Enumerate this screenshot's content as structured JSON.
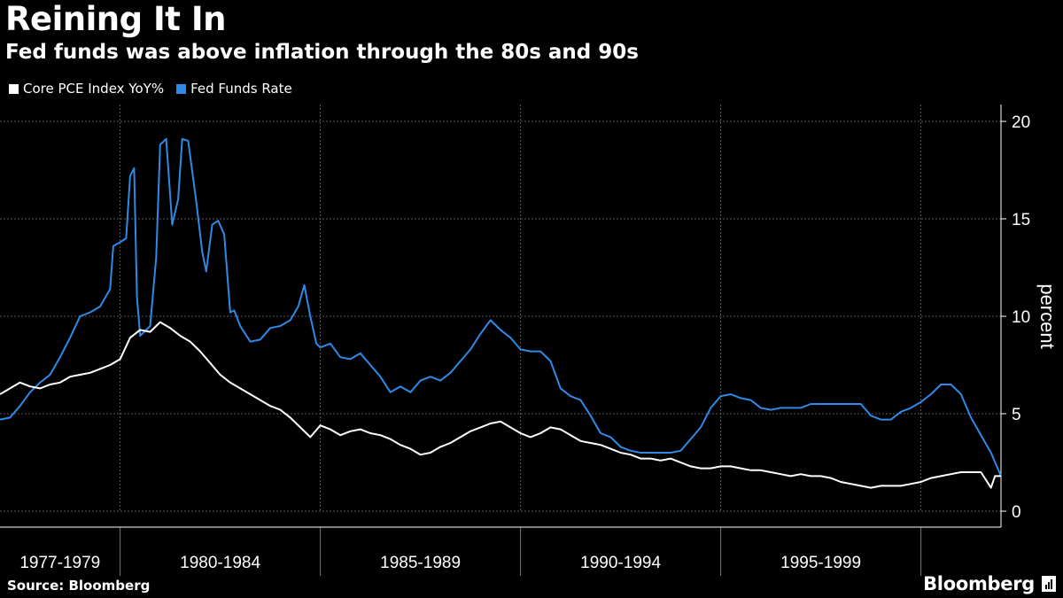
{
  "header": {
    "title": "Reining It In",
    "subtitle": "Fed funds was above inflation through the 80s and 90s"
  },
  "legend": [
    {
      "label": "Core PCE Index YoY%",
      "color": "#ffffff"
    },
    {
      "label": "Fed Funds Rate",
      "color": "#2e8ae6"
    }
  ],
  "footer": {
    "source": "Source: Bloomberg",
    "brand": "Bloomberg"
  },
  "chart_data": {
    "type": "line",
    "title": "Reining It In",
    "subtitle": "Fed funds was above inflation through the 80s and 90s",
    "xlabel": "",
    "ylabel": "percent",
    "xlim": [
      1977.0,
      2002.0
    ],
    "ylim": [
      0,
      20
    ],
    "y_ticks": [
      0,
      5,
      10,
      15,
      20
    ],
    "x_tick_labels": [
      {
        "label": "1977-1979",
        "center": 1978.5
      },
      {
        "label": "1980-1984",
        "center": 1982.5
      },
      {
        "label": "1985-1989",
        "center": 1987.5
      },
      {
        "label": "1990-1994",
        "center": 1992.5
      },
      {
        "label": "1995-1999",
        "center": 1997.5
      }
    ],
    "x_separators": [
      1980,
      1985,
      1990,
      1995,
      2000
    ],
    "legend_position": "top-left",
    "grid": true,
    "series": [
      {
        "name": "Core PCE Index YoY%",
        "color": "#ffffff",
        "points": [
          [
            1977.0,
            6.0
          ],
          [
            1977.25,
            6.3
          ],
          [
            1977.5,
            6.6
          ],
          [
            1977.75,
            6.4
          ],
          [
            1978.0,
            6.3
          ],
          [
            1978.25,
            6.5
          ],
          [
            1978.5,
            6.6
          ],
          [
            1978.75,
            6.9
          ],
          [
            1979.0,
            7.0
          ],
          [
            1979.25,
            7.1
          ],
          [
            1979.5,
            7.3
          ],
          [
            1979.75,
            7.5
          ],
          [
            1980.0,
            7.8
          ],
          [
            1980.25,
            8.9
          ],
          [
            1980.5,
            9.3
          ],
          [
            1980.75,
            9.2
          ],
          [
            1981.0,
            9.7
          ],
          [
            1981.25,
            9.4
          ],
          [
            1981.5,
            9.0
          ],
          [
            1981.75,
            8.7
          ],
          [
            1982.0,
            8.2
          ],
          [
            1982.25,
            7.6
          ],
          [
            1982.5,
            7.0
          ],
          [
            1982.75,
            6.6
          ],
          [
            1983.0,
            6.3
          ],
          [
            1983.25,
            6.0
          ],
          [
            1983.5,
            5.7
          ],
          [
            1983.75,
            5.4
          ],
          [
            1984.0,
            5.2
          ],
          [
            1984.25,
            4.8
          ],
          [
            1984.5,
            4.3
          ],
          [
            1984.75,
            3.8
          ],
          [
            1985.0,
            4.4
          ],
          [
            1985.25,
            4.2
          ],
          [
            1985.5,
            3.9
          ],
          [
            1985.75,
            4.1
          ],
          [
            1986.0,
            4.2
          ],
          [
            1986.25,
            4.0
          ],
          [
            1986.5,
            3.9
          ],
          [
            1986.75,
            3.7
          ],
          [
            1987.0,
            3.4
          ],
          [
            1987.25,
            3.2
          ],
          [
            1987.5,
            2.9
          ],
          [
            1987.75,
            3.0
          ],
          [
            1988.0,
            3.3
          ],
          [
            1988.25,
            3.5
          ],
          [
            1988.5,
            3.8
          ],
          [
            1988.75,
            4.1
          ],
          [
            1989.0,
            4.3
          ],
          [
            1989.25,
            4.5
          ],
          [
            1989.5,
            4.6
          ],
          [
            1989.75,
            4.3
          ],
          [
            1990.0,
            4.0
          ],
          [
            1990.25,
            3.8
          ],
          [
            1990.5,
            4.0
          ],
          [
            1990.75,
            4.3
          ],
          [
            1991.0,
            4.2
          ],
          [
            1991.25,
            3.9
          ],
          [
            1991.5,
            3.6
          ],
          [
            1991.75,
            3.5
          ],
          [
            1992.0,
            3.4
          ],
          [
            1992.25,
            3.2
          ],
          [
            1992.5,
            3.0
          ],
          [
            1992.75,
            2.9
          ],
          [
            1993.0,
            2.7
          ],
          [
            1993.25,
            2.7
          ],
          [
            1993.5,
            2.6
          ],
          [
            1993.75,
            2.7
          ],
          [
            1994.0,
            2.5
          ],
          [
            1994.25,
            2.3
          ],
          [
            1994.5,
            2.2
          ],
          [
            1994.75,
            2.2
          ],
          [
            1995.0,
            2.3
          ],
          [
            1995.25,
            2.3
          ],
          [
            1995.5,
            2.2
          ],
          [
            1995.75,
            2.1
          ],
          [
            1996.0,
            2.1
          ],
          [
            1996.25,
            2.0
          ],
          [
            1996.5,
            1.9
          ],
          [
            1996.75,
            1.8
          ],
          [
            1997.0,
            1.9
          ],
          [
            1997.25,
            1.8
          ],
          [
            1997.5,
            1.8
          ],
          [
            1997.75,
            1.7
          ],
          [
            1998.0,
            1.5
          ],
          [
            1998.25,
            1.4
          ],
          [
            1998.5,
            1.3
          ],
          [
            1998.75,
            1.2
          ],
          [
            1999.0,
            1.3
          ],
          [
            1999.25,
            1.3
          ],
          [
            1999.5,
            1.3
          ],
          [
            1999.75,
            1.4
          ],
          [
            2000.0,
            1.5
          ],
          [
            2000.25,
            1.7
          ],
          [
            2000.5,
            1.8
          ],
          [
            2000.75,
            1.9
          ],
          [
            2001.0,
            2.0
          ],
          [
            2001.25,
            2.0
          ],
          [
            2001.5,
            2.0
          ],
          [
            2001.75,
            1.2
          ],
          [
            2001.85,
            1.8
          ],
          [
            2002.0,
            1.8
          ]
        ]
      },
      {
        "name": "Fed Funds Rate",
        "color": "#2e8ae6",
        "points": [
          [
            1977.0,
            4.7
          ],
          [
            1977.25,
            4.8
          ],
          [
            1977.5,
            5.4
          ],
          [
            1977.75,
            6.1
          ],
          [
            1978.0,
            6.6
          ],
          [
            1978.25,
            7.0
          ],
          [
            1978.5,
            7.9
          ],
          [
            1978.75,
            8.9
          ],
          [
            1979.0,
            10.0
          ],
          [
            1979.25,
            10.2
          ],
          [
            1979.5,
            10.5
          ],
          [
            1979.75,
            11.4
          ],
          [
            1979.83,
            13.6
          ],
          [
            1980.0,
            13.8
          ],
          [
            1980.15,
            14.0
          ],
          [
            1980.25,
            17.2
          ],
          [
            1980.35,
            17.6
          ],
          [
            1980.42,
            11.0
          ],
          [
            1980.5,
            9.0
          ],
          [
            1980.75,
            9.5
          ],
          [
            1980.9,
            13.0
          ],
          [
            1981.0,
            18.8
          ],
          [
            1981.15,
            19.1
          ],
          [
            1981.3,
            14.7
          ],
          [
            1981.45,
            16.0
          ],
          [
            1981.55,
            19.1
          ],
          [
            1981.7,
            19.0
          ],
          [
            1981.9,
            15.9
          ],
          [
            1982.05,
            13.3
          ],
          [
            1982.15,
            12.3
          ],
          [
            1982.3,
            14.7
          ],
          [
            1982.45,
            14.9
          ],
          [
            1982.6,
            14.2
          ],
          [
            1982.75,
            10.2
          ],
          [
            1982.85,
            10.3
          ],
          [
            1983.0,
            9.5
          ],
          [
            1983.25,
            8.7
          ],
          [
            1983.5,
            8.8
          ],
          [
            1983.75,
            9.4
          ],
          [
            1984.0,
            9.5
          ],
          [
            1984.25,
            9.8
          ],
          [
            1984.45,
            10.5
          ],
          [
            1984.6,
            11.6
          ],
          [
            1984.75,
            10.0
          ],
          [
            1984.9,
            8.6
          ],
          [
            1985.0,
            8.4
          ],
          [
            1985.25,
            8.6
          ],
          [
            1985.5,
            7.9
          ],
          [
            1985.75,
            7.8
          ],
          [
            1986.0,
            8.1
          ],
          [
            1986.25,
            7.5
          ],
          [
            1986.5,
            6.9
          ],
          [
            1986.75,
            6.1
          ],
          [
            1987.0,
            6.4
          ],
          [
            1987.25,
            6.1
          ],
          [
            1987.5,
            6.7
          ],
          [
            1987.75,
            6.9
          ],
          [
            1988.0,
            6.7
          ],
          [
            1988.25,
            7.1
          ],
          [
            1988.5,
            7.7
          ],
          [
            1988.75,
            8.3
          ],
          [
            1989.0,
            9.1
          ],
          [
            1989.25,
            9.8
          ],
          [
            1989.5,
            9.3
          ],
          [
            1989.75,
            8.9
          ],
          [
            1990.0,
            8.3
          ],
          [
            1990.25,
            8.2
          ],
          [
            1990.5,
            8.2
          ],
          [
            1990.75,
            7.7
          ],
          [
            1991.0,
            6.3
          ],
          [
            1991.25,
            5.9
          ],
          [
            1991.5,
            5.7
          ],
          [
            1991.75,
            4.9
          ],
          [
            1992.0,
            4.0
          ],
          [
            1992.25,
            3.8
          ],
          [
            1992.5,
            3.3
          ],
          [
            1992.75,
            3.1
          ],
          [
            1993.0,
            3.0
          ],
          [
            1993.25,
            3.0
          ],
          [
            1993.5,
            3.0
          ],
          [
            1993.75,
            3.0
          ],
          [
            1994.0,
            3.1
          ],
          [
            1994.25,
            3.7
          ],
          [
            1994.5,
            4.3
          ],
          [
            1994.75,
            5.3
          ],
          [
            1995.0,
            5.9
          ],
          [
            1995.25,
            6.0
          ],
          [
            1995.5,
            5.8
          ],
          [
            1995.75,
            5.7
          ],
          [
            1996.0,
            5.3
          ],
          [
            1996.25,
            5.2
          ],
          [
            1996.5,
            5.3
          ],
          [
            1996.75,
            5.3
          ],
          [
            1997.0,
            5.3
          ],
          [
            1997.25,
            5.5
          ],
          [
            1997.5,
            5.5
          ],
          [
            1997.75,
            5.5
          ],
          [
            1998.0,
            5.5
          ],
          [
            1998.25,
            5.5
          ],
          [
            1998.5,
            5.5
          ],
          [
            1998.75,
            4.9
          ],
          [
            1999.0,
            4.7
          ],
          [
            1999.25,
            4.7
          ],
          [
            1999.5,
            5.1
          ],
          [
            1999.75,
            5.3
          ],
          [
            2000.0,
            5.6
          ],
          [
            2000.25,
            6.0
          ],
          [
            2000.5,
            6.5
          ],
          [
            2000.75,
            6.5
          ],
          [
            2001.0,
            6.0
          ],
          [
            2001.25,
            4.8
          ],
          [
            2001.5,
            3.9
          ],
          [
            2001.75,
            3.0
          ],
          [
            2002.0,
            1.8
          ]
        ]
      }
    ]
  }
}
